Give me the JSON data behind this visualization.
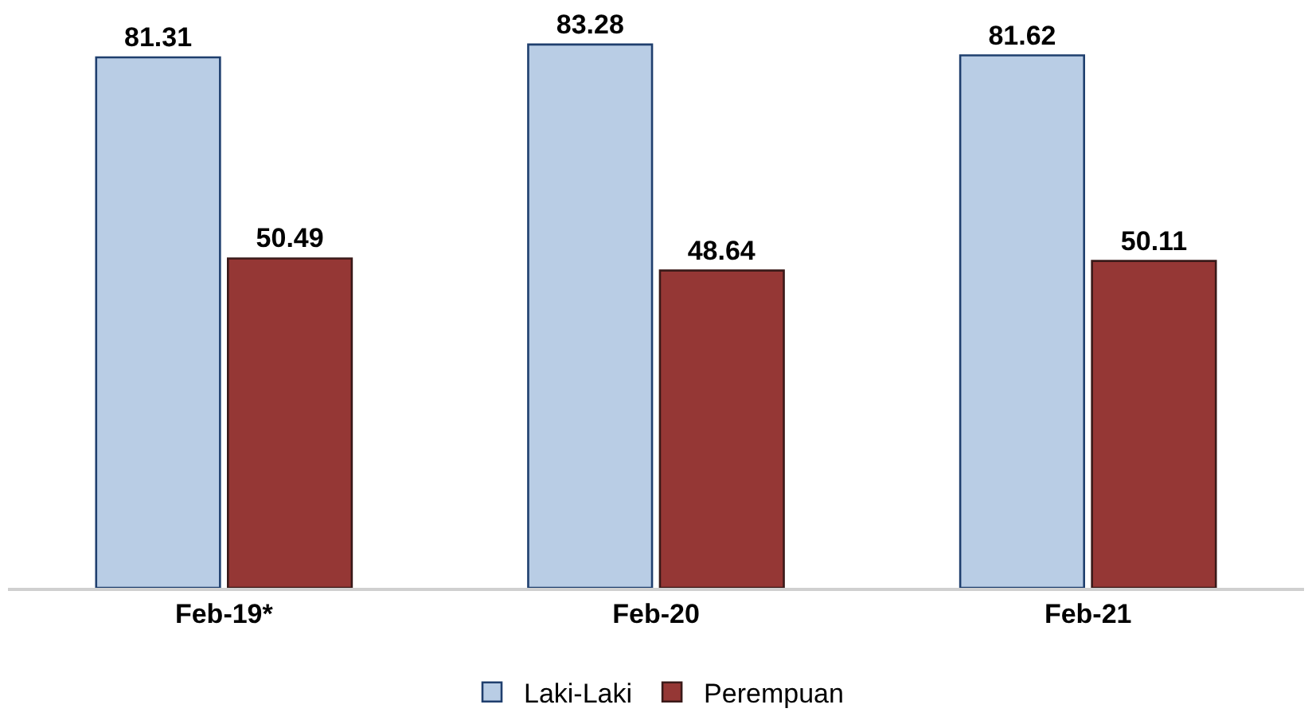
{
  "chart_data": {
    "type": "bar",
    "categories": [
      "Feb-19*",
      "Feb-20",
      "Feb-21"
    ],
    "series": [
      {
        "name": "Laki-Laki",
        "color": "#b9cde5",
        "values": [
          81.31,
          83.28,
          81.62
        ]
      },
      {
        "name": "Perempuan",
        "color": "#953735",
        "values": [
          50.49,
          48.64,
          50.11
        ]
      }
    ],
    "tick_labels": "x",
    "grid": false,
    "legend": "bottom",
    "data_labels": true
  }
}
